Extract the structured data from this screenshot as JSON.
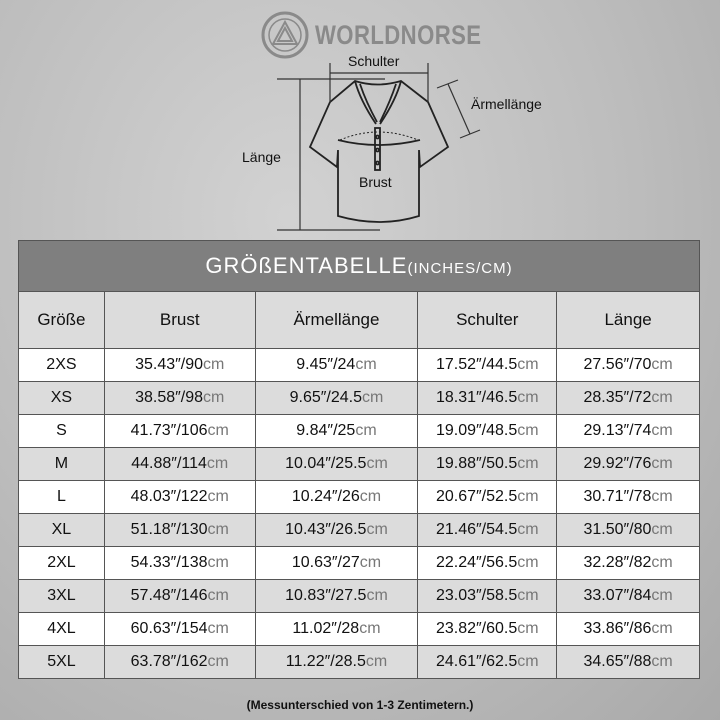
{
  "brand": {
    "name": "WORLDNORSE"
  },
  "diagram": {
    "labels": {
      "shoulder": "Schulter",
      "sleeve": "Ärmellänge",
      "length": "Länge",
      "chest": "Brust"
    }
  },
  "table": {
    "title": "GRÖßENTABELLE",
    "title_units": "(INCHES/CM)",
    "columns": [
      "Größe",
      "Brust",
      "Ärmellänge",
      "Schulter",
      "Länge"
    ],
    "rows": [
      {
        "size": "2XS",
        "cells": [
          {
            "v": "35.43″/90",
            "u": "cm"
          },
          {
            "v": "9.45″/24",
            "u": "cm"
          },
          {
            "v": "17.52″/44.5",
            "u": "cm"
          },
          {
            "v": "27.56″/70",
            "u": "cm"
          }
        ]
      },
      {
        "size": "XS",
        "cells": [
          {
            "v": "38.58″/98",
            "u": "cm"
          },
          {
            "v": "9.65″/24.5",
            "u": "cm"
          },
          {
            "v": "18.31″/46.5",
            "u": "cm"
          },
          {
            "v": "28.35″/72",
            "u": "cm"
          }
        ]
      },
      {
        "size": "S",
        "cells": [
          {
            "v": "41.73″/106",
            "u": "cm"
          },
          {
            "v": "9.84″/25",
            "u": "cm"
          },
          {
            "v": "19.09″/48.5",
            "u": "cm"
          },
          {
            "v": "29.13″/74",
            "u": "cm"
          }
        ]
      },
      {
        "size": "M",
        "cells": [
          {
            "v": "44.88″/114",
            "u": "cm"
          },
          {
            "v": "10.04″/25.5",
            "u": "cm"
          },
          {
            "v": "19.88″/50.5",
            "u": "cm"
          },
          {
            "v": "29.92″/76",
            "u": "cm"
          }
        ]
      },
      {
        "size": "L",
        "cells": [
          {
            "v": "48.03″/122",
            "u": "cm"
          },
          {
            "v": "10.24″/26",
            "u": "cm"
          },
          {
            "v": "20.67″/52.5",
            "u": "cm"
          },
          {
            "v": "30.71″/78",
            "u": "cm"
          }
        ]
      },
      {
        "size": "XL",
        "cells": [
          {
            "v": "51.18″/130",
            "u": "cm"
          },
          {
            "v": "10.43″/26.5",
            "u": "cm"
          },
          {
            "v": "21.46″/54.5",
            "u": "cm"
          },
          {
            "v": "31.50″/80",
            "u": "cm"
          }
        ]
      },
      {
        "size": "2XL",
        "cells": [
          {
            "v": "54.33″/138",
            "u": "cm"
          },
          {
            "v": "10.63″/27",
            "u": "cm"
          },
          {
            "v": "22.24″/56.5",
            "u": "cm"
          },
          {
            "v": "32.28″/82",
            "u": "cm"
          }
        ]
      },
      {
        "size": "3XL",
        "cells": [
          {
            "v": "57.48″/146",
            "u": "cm"
          },
          {
            "v": "10.83″/27.5",
            "u": "cm"
          },
          {
            "v": "23.03″/58.5",
            "u": "cm"
          },
          {
            "v": "33.07″/84",
            "u": "cm"
          }
        ]
      },
      {
        "size": "4XL",
        "cells": [
          {
            "v": "60.63″/154",
            "u": "cm"
          },
          {
            "v": "11.02″/28",
            "u": "cm"
          },
          {
            "v": "23.82″/60.5",
            "u": "cm"
          },
          {
            "v": "33.86″/86",
            "u": "cm"
          }
        ]
      },
      {
        "size": "5XL",
        "cells": [
          {
            "v": "63.78″/162",
            "u": "cm"
          },
          {
            "v": "11.22″/28.5",
            "u": "cm"
          },
          {
            "v": "24.61″/62.5",
            "u": "cm"
          },
          {
            "v": "34.65″/88",
            "u": "cm"
          }
        ]
      }
    ]
  },
  "note": "(Messunterschied von 1-3 Zentimetern.)",
  "colors": {
    "title_bar": "#7f7f7f",
    "header_row": "#dcdcdc",
    "alt_row": "#dcdcdc",
    "unit_text": "#777777"
  }
}
